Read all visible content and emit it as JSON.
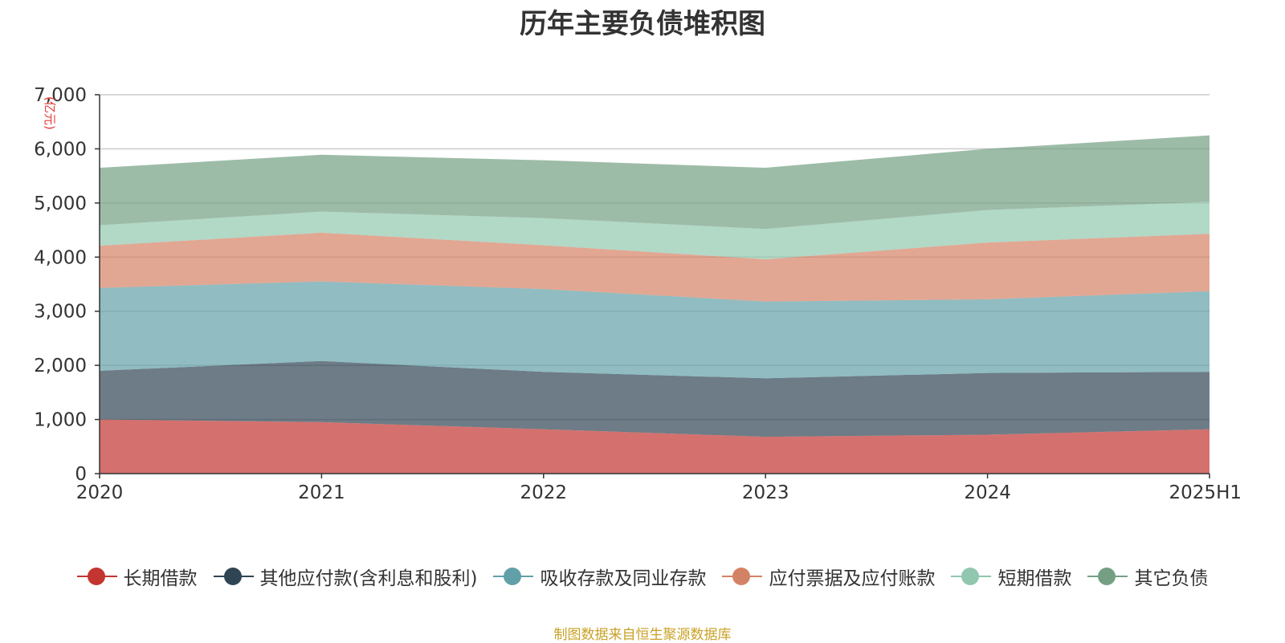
{
  "chart_data": {
    "type": "area",
    "stacked": true,
    "title": "历年主要负债堆积图",
    "unit_label": "(亿元)",
    "categories": [
      "2020",
      "2021",
      "2022",
      "2023",
      "2024",
      "2025H1"
    ],
    "y_ticks": [
      "0",
      "1,000",
      "2,000",
      "3,000",
      "4,000",
      "5,000",
      "6,000",
      "7,000"
    ],
    "ylim": [
      0,
      7000
    ],
    "grid": true,
    "legend_position": "bottom",
    "series": [
      {
        "name": "长期借款",
        "color": "#c23531",
        "values": [
          1000,
          950,
          820,
          680,
          720,
          820
        ]
      },
      {
        "name": "其他应付款(含利息和股利)",
        "color": "#2f4554",
        "values": [
          900,
          1130,
          1060,
          1080,
          1140,
          1060
        ]
      },
      {
        "name": "吸收存款及同业存款",
        "color": "#61a0a8",
        "values": [
          1530,
          1470,
          1530,
          1420,
          1360,
          1490
        ]
      },
      {
        "name": "应付票据及应付账款",
        "color": "#d48265",
        "values": [
          780,
          900,
          810,
          780,
          1050,
          1060
        ]
      },
      {
        "name": "短期借款",
        "color": "#91c7ae",
        "values": [
          380,
          390,
          500,
          560,
          600,
          590
        ]
      },
      {
        "name": "其它负债",
        "color": "#749f83",
        "values": [
          1060,
          1050,
          1070,
          1130,
          1130,
          1230
        ]
      }
    ]
  },
  "source_note": "制图数据来自恒生聚源数据库"
}
